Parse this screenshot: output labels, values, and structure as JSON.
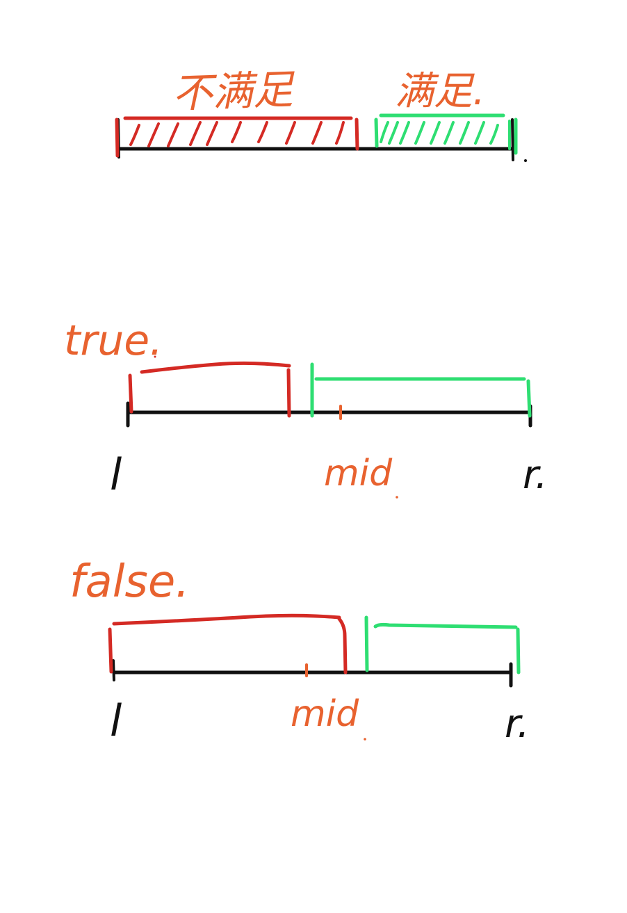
{
  "diagram": {
    "top": {
      "unsatisfied_label": "不满足",
      "satisfied_label": "满足."
    },
    "case_true": {
      "label": "true.",
      "left_label": "l",
      "mid_label": "mid",
      "right_label": "r."
    },
    "case_false": {
      "label": "false.",
      "left_label": "l",
      "mid_label": "mid",
      "right_label": "r."
    }
  },
  "colors": {
    "axis": "#111111",
    "unsatisfied": "#d42a24",
    "satisfied": "#2ede72",
    "annotation": "#e8622f"
  }
}
